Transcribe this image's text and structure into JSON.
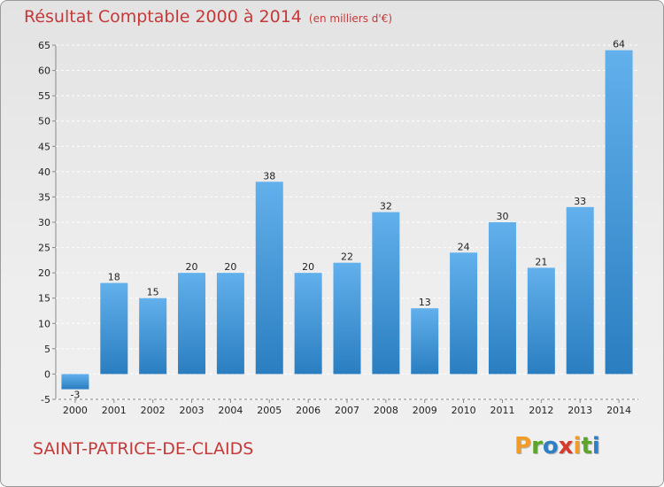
{
  "title": "Résultat Comptable 2000 à 2014",
  "subtitle": "(en milliers d'€)",
  "location": "SAINT-PATRICE-DE-CLAIDS",
  "logo": {
    "letters": [
      {
        "char": "P",
        "color": "#f29b25"
      },
      {
        "char": "r",
        "color": "#5aa629"
      },
      {
        "char": "o",
        "color": "#2f7fc4"
      },
      {
        "char": "x",
        "color": "#d63a2c"
      },
      {
        "char": "i",
        "color": "#f29b25"
      },
      {
        "char": "t",
        "color": "#5aa629"
      },
      {
        "char": "i",
        "color": "#2f7fc4"
      }
    ]
  },
  "colors": {
    "title": "#c43a3a",
    "bar_light": "#62b0ec",
    "bar_dark": "#2a7ec0",
    "grid": "#ffffff"
  },
  "chart_data": {
    "type": "bar",
    "categories": [
      "2000",
      "2001",
      "2002",
      "2003",
      "2004",
      "2005",
      "2006",
      "2007",
      "2008",
      "2009",
      "2010",
      "2011",
      "2012",
      "2013",
      "2014"
    ],
    "values": [
      -3,
      18,
      15,
      20,
      20,
      38,
      20,
      22,
      32,
      13,
      24,
      30,
      21,
      33,
      64
    ],
    "data_labels": [
      "-3",
      "18",
      "15",
      "20",
      "20",
      "38",
      "20",
      "22",
      "32",
      "13",
      "24",
      "30",
      "21",
      "33",
      "64"
    ],
    "ylim": [
      -5,
      65
    ],
    "yticks": [
      -5,
      0,
      5,
      10,
      15,
      20,
      25,
      30,
      35,
      40,
      45,
      50,
      55,
      60,
      65
    ],
    "grid": "horizontal dashed",
    "xlabel": "",
    "ylabel": ""
  }
}
